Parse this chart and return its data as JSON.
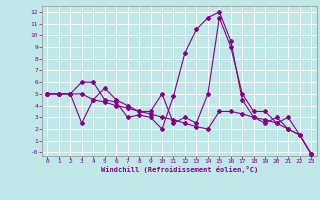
{
  "xlabel": "Windchill (Refroidissement éolien,°C)",
  "background_color": "#c0e8e8",
  "line_color": "#880088",
  "grid_color": "#ffffff",
  "xlim": [
    -0.5,
    23.5
  ],
  "ylim": [
    -0.3,
    12.5
  ],
  "xticks": [
    0,
    1,
    2,
    3,
    4,
    5,
    6,
    7,
    8,
    9,
    10,
    11,
    12,
    13,
    14,
    15,
    16,
    17,
    18,
    19,
    20,
    21,
    22,
    23
  ],
  "ytick_vals": [
    0,
    1,
    2,
    3,
    4,
    5,
    6,
    7,
    8,
    9,
    10,
    11,
    12
  ],
  "ytick_labels": [
    "-0",
    "1",
    "2",
    "3",
    "4",
    "5",
    "6",
    "7",
    "8",
    "9",
    "10",
    "11",
    "12"
  ],
  "series": [
    [
      5.0,
      5.0,
      5.0,
      6.0,
      6.0,
      4.5,
      4.3,
      3.0,
      3.2,
      3.0,
      2.0,
      4.8,
      8.5,
      10.5,
      11.5,
      12.0,
      9.5,
      4.5,
      3.0,
      2.5,
      3.0,
      2.0,
      1.5,
      -0.1
    ],
    [
      5.0,
      5.0,
      5.0,
      2.5,
      4.5,
      5.5,
      4.5,
      4.0,
      3.5,
      3.5,
      5.0,
      2.5,
      3.0,
      2.5,
      5.0,
      11.5,
      9.0,
      5.0,
      3.5,
      3.5,
      2.5,
      3.0,
      1.5,
      -0.1
    ],
    [
      5.0,
      5.0,
      5.0,
      5.0,
      4.5,
      4.3,
      4.0,
      3.8,
      3.5,
      3.3,
      3.0,
      2.8,
      2.5,
      2.2,
      2.0,
      3.5,
      3.5,
      3.3,
      3.0,
      2.8,
      2.5,
      2.0,
      1.5,
      -0.1
    ]
  ]
}
